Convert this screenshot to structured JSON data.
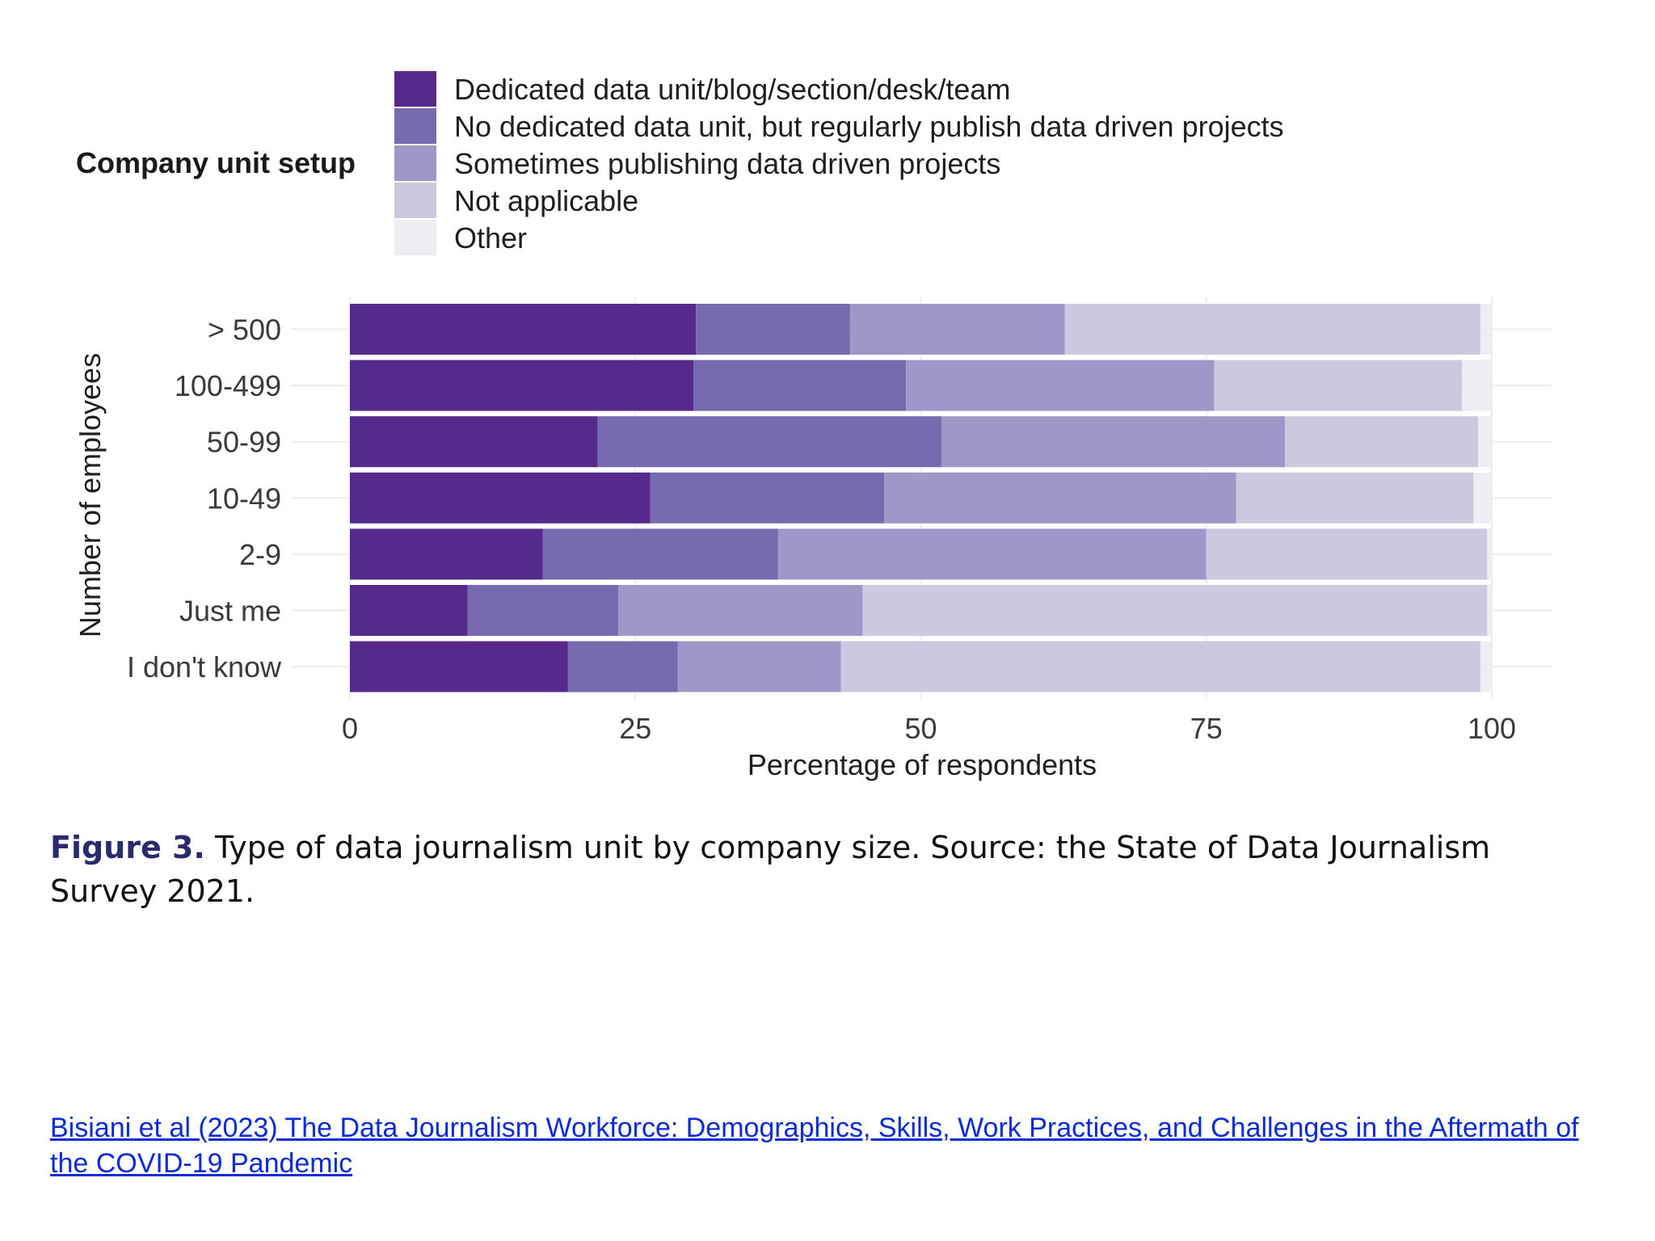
{
  "chart_data": {
    "type": "bar",
    "orientation": "horizontal",
    "stacked": true,
    "legend_title": "Company unit setup",
    "legend_position": "top",
    "xlabel": "Percentage of respondents",
    "ylabel": "Number of employees",
    "xlim": [
      0,
      100
    ],
    "xticks": [
      0,
      25,
      50,
      75,
      100
    ],
    "grid": true,
    "categories": [
      "> 500",
      "100-499",
      "50-99",
      "10-49",
      "2-9",
      "Just me",
      "I don't know"
    ],
    "series": [
      {
        "name": "Dedicated data unit/blog/section/desk/team",
        "color": "#552a8c",
        "values": [
          30.3,
          30.1,
          21.7,
          26.3,
          16.9,
          10.3,
          19.1
        ]
      },
      {
        "name": "No dedicated data unit, but regularly publish data driven projects",
        "color": "#776aae",
        "values": [
          13.5,
          18.6,
          30.1,
          20.5,
          20.6,
          13.2,
          9.6
        ]
      },
      {
        "name": "Sometimes publishing data driven projects",
        "color": "#9e98c8",
        "values": [
          18.8,
          27.0,
          30.1,
          30.8,
          37.5,
          21.4,
          14.3
        ]
      },
      {
        "name": "Not applicable",
        "color": "#cbc8e0",
        "values": [
          36.4,
          21.7,
          16.9,
          20.8,
          24.6,
          54.7,
          56.0
        ]
      },
      {
        "name": "Other",
        "color": "#eeedf4",
        "values": [
          1.0,
          2.6,
          1.2,
          1.6,
          0.4,
          0.4,
          1.0
        ]
      }
    ]
  },
  "caption": {
    "label": "Figure 3.",
    "text": " Type of data journalism unit by company size. Source: the State of Data Journalism Survey 2021."
  },
  "citation": {
    "text": "Bisiani et al (2023) The Data Journalism Workforce: Demographics, Skills, Work Practices, and Challenges in the Aftermath of the COVID-19 Pandemic"
  }
}
